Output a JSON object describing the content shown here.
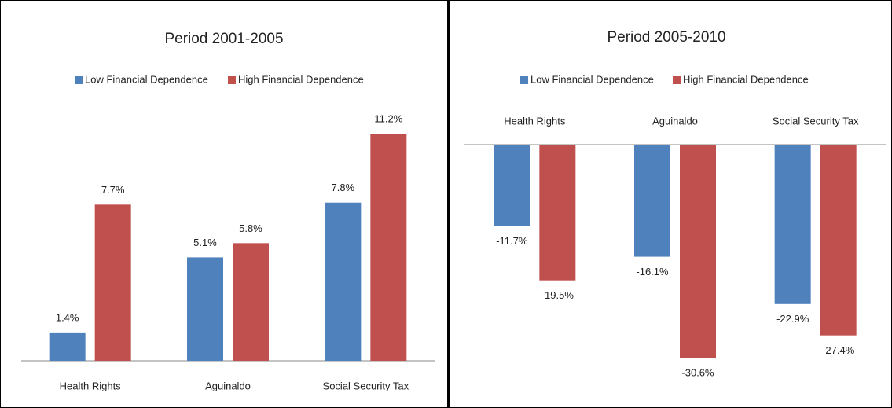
{
  "chart_data": [
    {
      "type": "bar",
      "title": "Period 2001-2005",
      "categories": [
        "Health Rights",
        "Aguinaldo",
        "Social Security Tax"
      ],
      "series": [
        {
          "name": "Low Financial Dependence",
          "color": "#4f81bd",
          "values": [
            1.4,
            5.1,
            7.8
          ],
          "value_labels": [
            "1.4%",
            "5.1%",
            "7.8%"
          ]
        },
        {
          "name": "High Financial Dependence",
          "color": "#c0504d",
          "values": [
            7.7,
            5.8,
            11.2
          ],
          "value_labels": [
            "7.7%",
            "5.8%",
            "11.2%"
          ]
        }
      ]
    },
    {
      "type": "bar",
      "title": "Period 2005-2010",
      "categories": [
        "Health Rights",
        "Aguinaldo",
        "Social Security Tax"
      ],
      "series": [
        {
          "name": "Low Financial Dependence",
          "color": "#4f81bd",
          "values": [
            -11.7,
            -16.1,
            -22.9
          ],
          "value_labels": [
            "-11.7%",
            "-16.1%",
            "-22.9%"
          ]
        },
        {
          "name": "High Financial Dependence",
          "color": "#c0504d",
          "values": [
            -19.5,
            -30.6,
            -27.4
          ],
          "value_labels": [
            "-19.5%",
            "-30.6%",
            "-27.4%"
          ]
        }
      ]
    }
  ]
}
